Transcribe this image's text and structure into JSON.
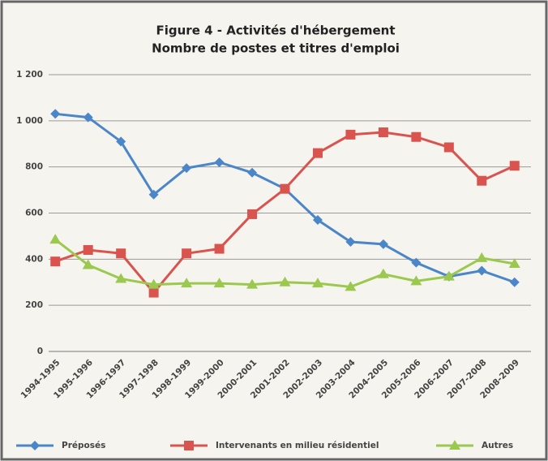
{
  "chart_data": {
    "type": "line",
    "title": "Figure 4 - Activités d'hébergement",
    "subtitle": "Nombre de postes et titres d'emploi",
    "categories": [
      "1994-1995",
      "1995-1996",
      "1996-1997",
      "1997-1998",
      "1998-1999",
      "1999-2000",
      "2000-2001",
      "2001-2002",
      "2002-2003",
      "2003-2004",
      "2004-2005",
      "2005-2006",
      "2006-2007",
      "2007-2008",
      "2008-2009"
    ],
    "series": [
      {
        "name": "Préposés",
        "color": "#4a86c8",
        "marker": "diamond",
        "values": [
          1030,
          1015,
          910,
          680,
          795,
          820,
          775,
          705,
          570,
          475,
          465,
          385,
          325,
          350,
          300
        ]
      },
      {
        "name": "Intervenants en milieu résidentiel",
        "color": "#d9534f",
        "marker": "square",
        "values": [
          390,
          440,
          425,
          255,
          425,
          445,
          595,
          705,
          860,
          940,
          950,
          930,
          885,
          740,
          805
        ]
      },
      {
        "name": "Autres",
        "color": "#9bc94f",
        "marker": "triangle",
        "values": [
          485,
          375,
          315,
          290,
          295,
          295,
          290,
          300,
          295,
          280,
          335,
          305,
          325,
          405,
          380
        ]
      }
    ],
    "ylim": [
      0,
      1200
    ],
    "yticks": [
      0,
      200,
      400,
      600,
      800,
      {
        "value": 1000,
        "label": "1 000"
      },
      {
        "value": 1200,
        "label": "1 200"
      }
    ],
    "grid": true,
    "legend": "bottom"
  }
}
